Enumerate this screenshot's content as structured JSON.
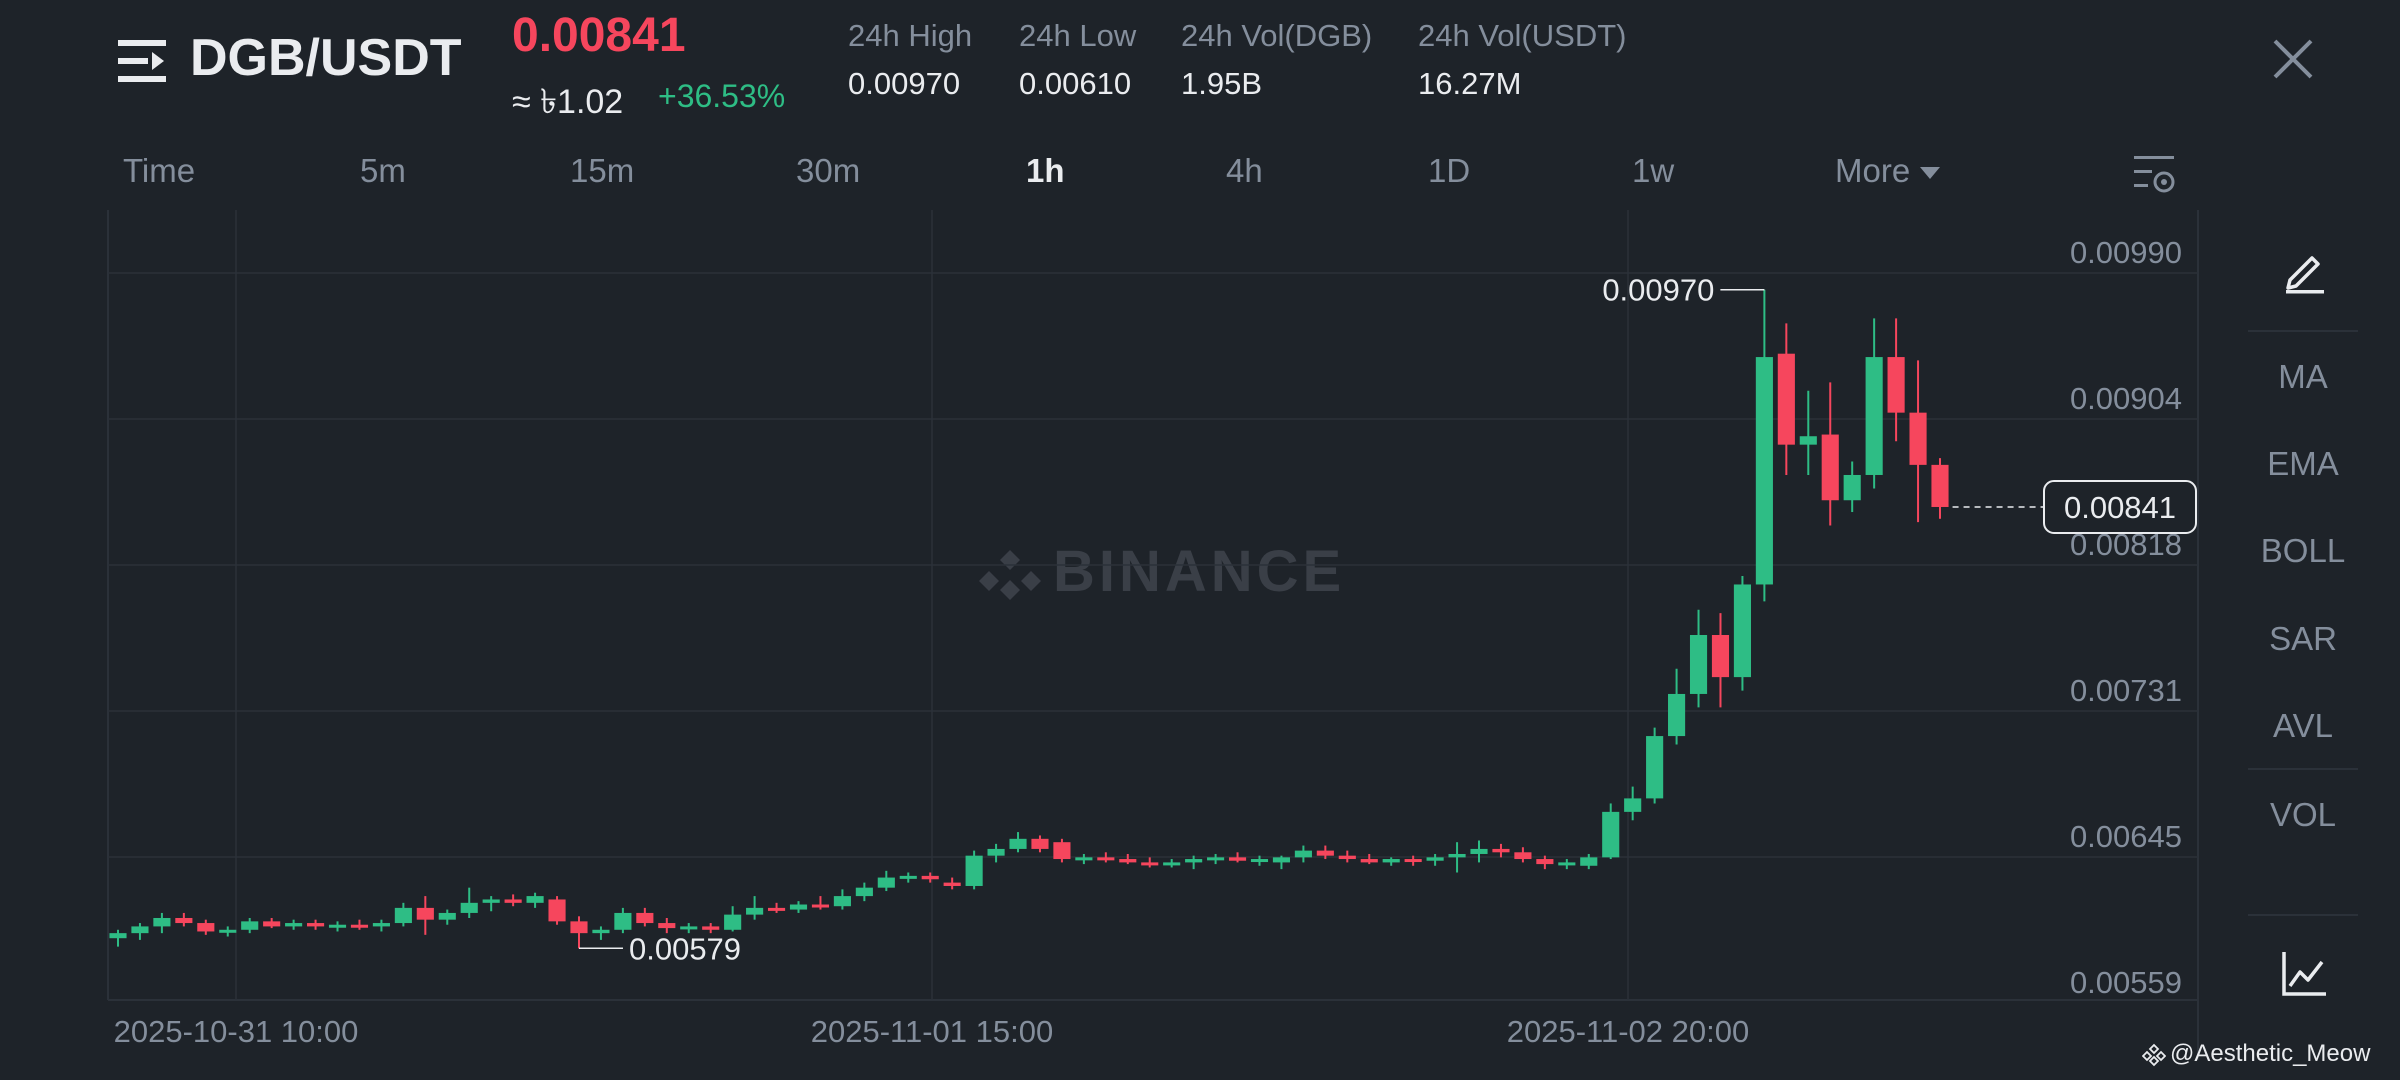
{
  "header": {
    "pair": "DGB/USDT",
    "last_price": "0.00841",
    "approx_fiat": "≈ ৳1.02",
    "change_pct": "+36.53%",
    "stats": [
      {
        "label": "24h High",
        "value": "0.00970"
      },
      {
        "label": "24h Low",
        "value": "0.00610"
      },
      {
        "label": "24h Vol(DGB)",
        "value": "1.95B"
      },
      {
        "label": "24h Vol(USDT)",
        "value": "16.27M"
      }
    ]
  },
  "intervals": {
    "items": [
      "Time",
      "5m",
      "15m",
      "30m",
      "1h",
      "4h",
      "1D",
      "1w",
      "More"
    ],
    "selected": "1h"
  },
  "right_toolbar": {
    "items": [
      "MA",
      "EMA",
      "BOLL",
      "SAR",
      "AVL",
      "VOL"
    ]
  },
  "watermark": {
    "center": "BINANCE",
    "corner": "@Aesthetic_Meow"
  },
  "colors": {
    "up": "#2ebd85",
    "down": "#f6465d",
    "background": "#1e2329",
    "grid": "#2b3139"
  },
  "chart_data": {
    "type": "candlestick",
    "y_ticks": [
      "0.00990",
      "0.00904",
      "0.00818",
      "0.00731",
      "0.00645",
      "0.00559"
    ],
    "x_ticks": [
      "2025-10-31 10:00",
      "2025-11-01 15:00",
      "2025-11-02 20:00"
    ],
    "ylim": [
      0.00559,
      0.0099
    ],
    "high_marker": "0.00970",
    "low_marker": "0.00579",
    "current_price_label": "0.00841",
    "grid": true,
    "candles": [
      {
        "o": 0.00585,
        "h": 0.0059,
        "l": 0.0058,
        "c": 0.00588
      },
      {
        "o": 0.00588,
        "h": 0.00594,
        "l": 0.00584,
        "c": 0.00592
      },
      {
        "o": 0.00592,
        "h": 0.006,
        "l": 0.00588,
        "c": 0.00597
      },
      {
        "o": 0.00597,
        "h": 0.006,
        "l": 0.00592,
        "c": 0.00594
      },
      {
        "o": 0.00594,
        "h": 0.00596,
        "l": 0.00587,
        "c": 0.00589
      },
      {
        "o": 0.00589,
        "h": 0.00592,
        "l": 0.00586,
        "c": 0.0059
      },
      {
        "o": 0.0059,
        "h": 0.00597,
        "l": 0.00588,
        "c": 0.00595
      },
      {
        "o": 0.00595,
        "h": 0.00597,
        "l": 0.00591,
        "c": 0.00592
      },
      {
        "o": 0.00592,
        "h": 0.00596,
        "l": 0.0059,
        "c": 0.00594
      },
      {
        "o": 0.00594,
        "h": 0.00596,
        "l": 0.0059,
        "c": 0.00592
      },
      {
        "o": 0.00592,
        "h": 0.00595,
        "l": 0.00589,
        "c": 0.00593
      },
      {
        "o": 0.00593,
        "h": 0.00596,
        "l": 0.0059,
        "c": 0.00592
      },
      {
        "o": 0.00592,
        "h": 0.00596,
        "l": 0.00589,
        "c": 0.00594
      },
      {
        "o": 0.00594,
        "h": 0.00606,
        "l": 0.00592,
        "c": 0.00603
      },
      {
        "o": 0.00603,
        "h": 0.0061,
        "l": 0.00587,
        "c": 0.00596
      },
      {
        "o": 0.00596,
        "h": 0.00602,
        "l": 0.00593,
        "c": 0.006
      },
      {
        "o": 0.006,
        "h": 0.00615,
        "l": 0.00597,
        "c": 0.00606
      },
      {
        "o": 0.00606,
        "h": 0.0061,
        "l": 0.00601,
        "c": 0.00608
      },
      {
        "o": 0.00608,
        "h": 0.00611,
        "l": 0.00604,
        "c": 0.00606
      },
      {
        "o": 0.00606,
        "h": 0.00612,
        "l": 0.00603,
        "c": 0.0061
      },
      {
        "o": 0.00608,
        "h": 0.0061,
        "l": 0.00593,
        "c": 0.00595
      },
      {
        "o": 0.00595,
        "h": 0.00598,
        "l": 0.00579,
        "c": 0.00588
      },
      {
        "o": 0.00588,
        "h": 0.00592,
        "l": 0.00584,
        "c": 0.0059
      },
      {
        "o": 0.0059,
        "h": 0.00603,
        "l": 0.00588,
        "c": 0.006
      },
      {
        "o": 0.006,
        "h": 0.00603,
        "l": 0.00592,
        "c": 0.00594
      },
      {
        "o": 0.00594,
        "h": 0.00597,
        "l": 0.00588,
        "c": 0.00591
      },
      {
        "o": 0.00591,
        "h": 0.00594,
        "l": 0.00588,
        "c": 0.00592
      },
      {
        "o": 0.00592,
        "h": 0.00594,
        "l": 0.00588,
        "c": 0.0059
      },
      {
        "o": 0.0059,
        "h": 0.00604,
        "l": 0.00589,
        "c": 0.00599
      },
      {
        "o": 0.00599,
        "h": 0.0061,
        "l": 0.00596,
        "c": 0.00603
      },
      {
        "o": 0.00603,
        "h": 0.00606,
        "l": 0.006,
        "c": 0.00602
      },
      {
        "o": 0.00602,
        "h": 0.00607,
        "l": 0.006,
        "c": 0.00605
      },
      {
        "o": 0.00605,
        "h": 0.0061,
        "l": 0.00602,
        "c": 0.00604
      },
      {
        "o": 0.00604,
        "h": 0.00614,
        "l": 0.00602,
        "c": 0.0061
      },
      {
        "o": 0.0061,
        "h": 0.00618,
        "l": 0.00607,
        "c": 0.00615
      },
      {
        "o": 0.00615,
        "h": 0.00625,
        "l": 0.00613,
        "c": 0.00621
      },
      {
        "o": 0.00621,
        "h": 0.00624,
        "l": 0.00618,
        "c": 0.00622
      },
      {
        "o": 0.00622,
        "h": 0.00624,
        "l": 0.00618,
        "c": 0.0062
      },
      {
        "o": 0.00618,
        "h": 0.00621,
        "l": 0.00614,
        "c": 0.00616
      },
      {
        "o": 0.00616,
        "h": 0.00637,
        "l": 0.00614,
        "c": 0.00634
      },
      {
        "o": 0.00634,
        "h": 0.00641,
        "l": 0.0063,
        "c": 0.00638
      },
      {
        "o": 0.00638,
        "h": 0.00648,
        "l": 0.00636,
        "c": 0.00644
      },
      {
        "o": 0.00644,
        "h": 0.00646,
        "l": 0.00636,
        "c": 0.00638
      },
      {
        "o": 0.00642,
        "h": 0.00644,
        "l": 0.0063,
        "c": 0.00632
      },
      {
        "o": 0.00632,
        "h": 0.00635,
        "l": 0.00629,
        "c": 0.00633
      },
      {
        "o": 0.00633,
        "h": 0.00636,
        "l": 0.0063,
        "c": 0.00632
      },
      {
        "o": 0.00632,
        "h": 0.00635,
        "l": 0.00629,
        "c": 0.0063
      },
      {
        "o": 0.0063,
        "h": 0.00633,
        "l": 0.00627,
        "c": 0.00629
      },
      {
        "o": 0.00629,
        "h": 0.00632,
        "l": 0.00627,
        "c": 0.0063
      },
      {
        "o": 0.0063,
        "h": 0.00634,
        "l": 0.00626,
        "c": 0.00632
      },
      {
        "o": 0.00632,
        "h": 0.00635,
        "l": 0.00629,
        "c": 0.00633
      },
      {
        "o": 0.00633,
        "h": 0.00636,
        "l": 0.0063,
        "c": 0.00631
      },
      {
        "o": 0.00631,
        "h": 0.00634,
        "l": 0.00628,
        "c": 0.00632
      },
      {
        "o": 0.0063,
        "h": 0.00634,
        "l": 0.00626,
        "c": 0.00633
      },
      {
        "o": 0.00633,
        "h": 0.0064,
        "l": 0.0063,
        "c": 0.00637
      },
      {
        "o": 0.00637,
        "h": 0.0064,
        "l": 0.00632,
        "c": 0.00634
      },
      {
        "o": 0.00634,
        "h": 0.00637,
        "l": 0.0063,
        "c": 0.00632
      },
      {
        "o": 0.00632,
        "h": 0.00635,
        "l": 0.00629,
        "c": 0.0063
      },
      {
        "o": 0.0063,
        "h": 0.00633,
        "l": 0.00628,
        "c": 0.00632
      },
      {
        "o": 0.00632,
        "h": 0.00634,
        "l": 0.00628,
        "c": 0.00631
      },
      {
        "o": 0.00631,
        "h": 0.00635,
        "l": 0.00628,
        "c": 0.00633
      },
      {
        "o": 0.00633,
        "h": 0.00642,
        "l": 0.00624,
        "c": 0.00635
      },
      {
        "o": 0.00635,
        "h": 0.00643,
        "l": 0.0063,
        "c": 0.00638
      },
      {
        "o": 0.00638,
        "h": 0.00641,
        "l": 0.00633,
        "c": 0.00636
      },
      {
        "o": 0.00636,
        "h": 0.00639,
        "l": 0.0063,
        "c": 0.00632
      },
      {
        "o": 0.00632,
        "h": 0.00634,
        "l": 0.00626,
        "c": 0.00629
      },
      {
        "o": 0.00629,
        "h": 0.00632,
        "l": 0.00626,
        "c": 0.0063
      },
      {
        "o": 0.00628,
        "h": 0.00635,
        "l": 0.00626,
        "c": 0.00633
      },
      {
        "o": 0.00633,
        "h": 0.00665,
        "l": 0.00632,
        "c": 0.0066
      },
      {
        "o": 0.0066,
        "h": 0.00675,
        "l": 0.00655,
        "c": 0.00668
      },
      {
        "o": 0.00668,
        "h": 0.0071,
        "l": 0.00665,
        "c": 0.00705
      },
      {
        "o": 0.00705,
        "h": 0.00745,
        "l": 0.007,
        "c": 0.0073
      },
      {
        "o": 0.0073,
        "h": 0.0078,
        "l": 0.00722,
        "c": 0.00765
      },
      {
        "o": 0.00765,
        "h": 0.00778,
        "l": 0.00722,
        "c": 0.0074
      },
      {
        "o": 0.0074,
        "h": 0.008,
        "l": 0.00732,
        "c": 0.00795
      },
      {
        "o": 0.00795,
        "h": 0.0097,
        "l": 0.00785,
        "c": 0.0093
      },
      {
        "o": 0.00932,
        "h": 0.0095,
        "l": 0.0086,
        "c": 0.00878
      },
      {
        "o": 0.00878,
        "h": 0.0091,
        "l": 0.0086,
        "c": 0.00883
      },
      {
        "o": 0.00884,
        "h": 0.00915,
        "l": 0.0083,
        "c": 0.00845
      },
      {
        "o": 0.00845,
        "h": 0.00868,
        "l": 0.00838,
        "c": 0.0086
      },
      {
        "o": 0.0086,
        "h": 0.00953,
        "l": 0.00852,
        "c": 0.0093
      },
      {
        "o": 0.0093,
        "h": 0.00953,
        "l": 0.0088,
        "c": 0.00897
      },
      {
        "o": 0.00897,
        "h": 0.00928,
        "l": 0.00832,
        "c": 0.00866
      },
      {
        "o": 0.00866,
        "h": 0.0087,
        "l": 0.00834,
        "c": 0.00841
      }
    ]
  }
}
